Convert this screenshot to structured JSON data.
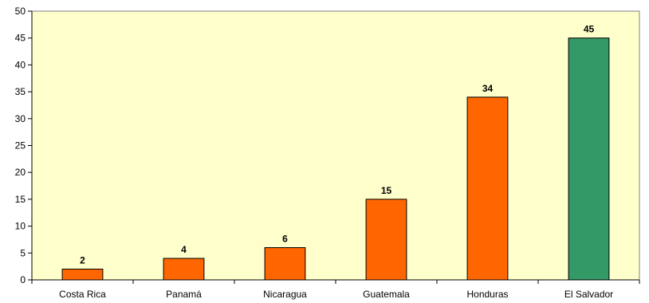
{
  "chart_data": {
    "type": "bar",
    "categories": [
      "Costa Rica",
      "Panamá",
      "Nicaragua",
      "Guatemala",
      "Honduras",
      "El Salvador"
    ],
    "values": [
      2,
      4,
      6,
      15,
      34,
      45
    ],
    "data_labels": [
      "2",
      "4",
      "6",
      "15",
      "34",
      "45"
    ],
    "title": "",
    "xlabel": "",
    "ylabel": "",
    "ylim": [
      0,
      50
    ],
    "yticks": [
      0,
      5,
      10,
      15,
      20,
      25,
      30,
      35,
      40,
      45,
      50
    ],
    "ytick_labels": [
      "0",
      "5",
      "10",
      "15",
      "20",
      "25",
      "30",
      "35",
      "40",
      "45",
      "50"
    ],
    "grid": false,
    "legend": "none",
    "colors": {
      "plot_background": "#FFFFCC",
      "default_bar": "#FF6600",
      "highlight_bar": "#339966",
      "bar_outline": "#000000"
    },
    "bar_colors": [
      "#FF6600",
      "#FF6600",
      "#FF6600",
      "#FF6600",
      "#FF6600",
      "#339966"
    ]
  }
}
